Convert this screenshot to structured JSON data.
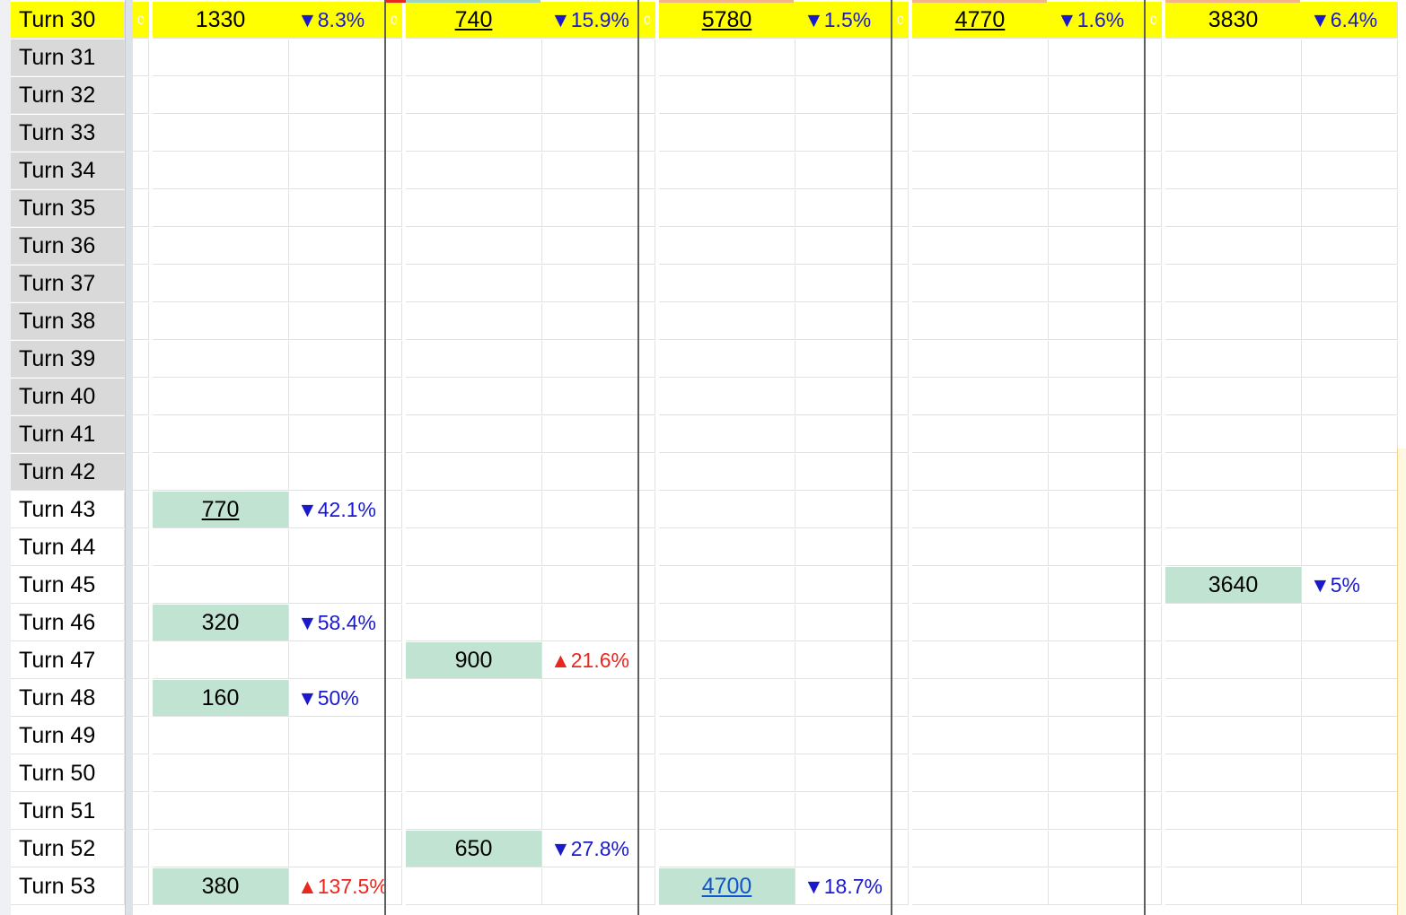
{
  "rows": [
    {
      "label": "Turn 30",
      "highlight": true,
      "groups": [
        {
          "zero": "0",
          "value": "1330",
          "style": "hl",
          "pct": "▼8.3%",
          "dir": "down"
        },
        {
          "zero": "0",
          "value": "740",
          "style": "hl-u",
          "pct": "▼15.9%",
          "dir": "down"
        },
        {
          "zero": "0",
          "value": "5780",
          "style": "hl-u",
          "pct": "▼1.5%",
          "dir": "down"
        },
        {
          "zero": "0",
          "value": "4770",
          "style": "hl-u",
          "pct": "▼1.6%",
          "dir": "down"
        },
        {
          "zero": "0",
          "value": "3830",
          "style": "hl",
          "pct": "▼6.4%",
          "dir": "down"
        }
      ]
    },
    {
      "label": "Turn 31",
      "grey": true,
      "groups": []
    },
    {
      "label": "Turn 32",
      "grey": true,
      "groups": []
    },
    {
      "label": "Turn 33",
      "grey": true,
      "groups": []
    },
    {
      "label": "Turn 34",
      "grey": true,
      "groups": []
    },
    {
      "label": "Turn 35",
      "grey": true,
      "groups": []
    },
    {
      "label": "Turn 36",
      "grey": true,
      "groups": []
    },
    {
      "label": "Turn 37",
      "grey": true,
      "groups": []
    },
    {
      "label": "Turn 38",
      "grey": true,
      "groups": []
    },
    {
      "label": "Turn 39",
      "grey": true,
      "groups": []
    },
    {
      "label": "Turn 40",
      "grey": true,
      "groups": []
    },
    {
      "label": "Turn 41",
      "grey": true,
      "groups": []
    },
    {
      "label": "Turn 42",
      "grey": true,
      "groups": []
    },
    {
      "label": "Turn 43",
      "groups": [
        {
          "value": "770",
          "style": "green-u",
          "pct": "▼42.1%",
          "dir": "down"
        }
      ]
    },
    {
      "label": "Turn 44",
      "groups": []
    },
    {
      "label": "Turn 45",
      "groups": [
        null,
        null,
        null,
        null,
        {
          "value": "3640",
          "style": "green",
          "pct": "▼5%",
          "dir": "down"
        }
      ]
    },
    {
      "label": "Turn 46",
      "groups": [
        {
          "value": "320",
          "style": "green",
          "pct": "▼58.4%",
          "dir": "down"
        }
      ]
    },
    {
      "label": "Turn 47",
      "groups": [
        null,
        {
          "value": "900",
          "style": "green",
          "pct": "▲21.6%",
          "dir": "up"
        }
      ]
    },
    {
      "label": "Turn 48",
      "groups": [
        {
          "value": "160",
          "style": "green",
          "pct": "▼50%",
          "dir": "down"
        }
      ]
    },
    {
      "label": "Turn 49",
      "groups": []
    },
    {
      "label": "Turn 50",
      "groups": []
    },
    {
      "label": "Turn 51",
      "groups": []
    },
    {
      "label": "Turn 52",
      "groups": [
        null,
        {
          "value": "650",
          "style": "green",
          "pct": "▼27.8%",
          "dir": "down"
        }
      ]
    },
    {
      "label": "Turn 53",
      "groups": [
        {
          "value": "380",
          "style": "green",
          "pct": "▲137.5%",
          "dir": "up"
        },
        null,
        {
          "value": "4700",
          "style": "green-link",
          "pct": "▼18.7%",
          "dir": "down"
        }
      ]
    }
  ],
  "colors": {
    "highlight": "#ffff00",
    "header_grey": "#d9d9d9",
    "green_fill": "#c0e3d2",
    "down_text": "#1a1acc",
    "up_text": "#e8281e",
    "link": "#1155cc"
  }
}
